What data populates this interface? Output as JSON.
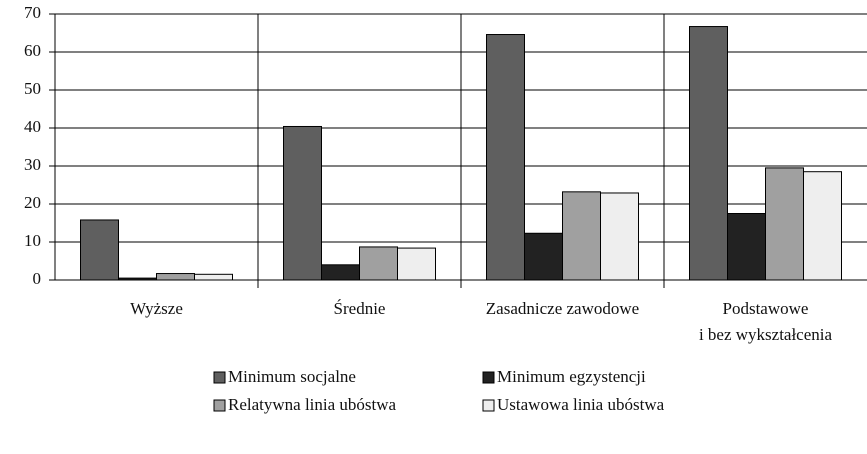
{
  "chart_data": {
    "type": "bar",
    "categories": [
      "Wyższe",
      "Średnie",
      "Zasadnicze zawodowe",
      "Podstawowe\ni bez wykształcenia"
    ],
    "series": [
      {
        "name": "Minimum socjalne",
        "color": "#5f5f5f",
        "values": [
          15.8,
          40.4,
          64.6,
          66.7
        ]
      },
      {
        "name": "Minimum egzystencji",
        "color": "#222222",
        "values": [
          0.5,
          4.0,
          12.3,
          17.5
        ]
      },
      {
        "name": "Relatywna linia ubóstwa",
        "color": "#a0a0a0",
        "values": [
          1.7,
          8.7,
          23.2,
          29.5
        ]
      },
      {
        "name": "Ustawowa linia ubóstwa",
        "color": "#eeeeee",
        "values": [
          1.5,
          8.4,
          22.9,
          28.5
        ]
      }
    ],
    "ylim": [
      0,
      70
    ],
    "yticks": [
      0,
      10,
      20,
      30,
      40,
      50,
      60,
      70
    ],
    "grid": true
  }
}
